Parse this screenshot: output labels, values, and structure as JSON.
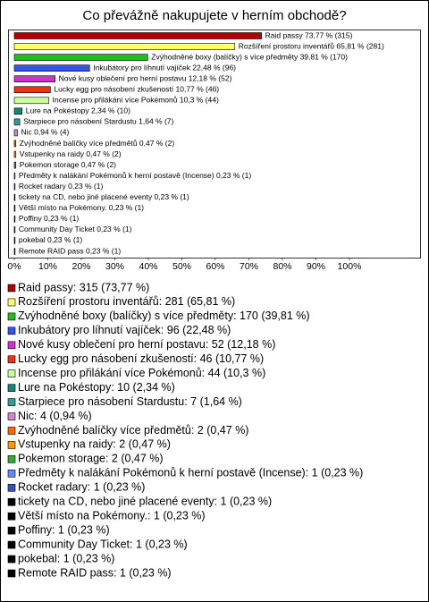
{
  "chart_data": {
    "type": "bar",
    "orientation": "horizontal",
    "title": "Co převážně nakupujete v herním obchodě?",
    "categories": [
      "Raid passy",
      "Rozšíření prostoru inventářů",
      "Zvýhodněné boxy (balíčky) s více předměty",
      "Inkubátory pro líhnutí vajíček",
      "Nové kusy oblečení pro herní postavu",
      "Lucky egg pro násobení zkušeností",
      "Incense pro přilákání více Pokémonů",
      "Lure na Pokéstopy",
      "Starpiece pro násobení Stardustu",
      "Nic",
      "Zvýhodněné balíčky více předmětů",
      "Vstupenky na raidy",
      "Pokemon storage",
      "Předměty k nalákání Pokémonů k herní postavě (Incense)",
      "Rocket radary",
      "tickety na CD, nebo jiné placené eventy",
      "Větší místo na Pokémony.",
      "Poffiny",
      "Community Day Ticket",
      "pokebal",
      "Remote RAID pass"
    ],
    "values": [
      73.77,
      65.81,
      39.81,
      22.48,
      12.18,
      10.77,
      10.3,
      2.34,
      1.64,
      0.94,
      0.47,
      0.47,
      0.47,
      0.23,
      0.23,
      0.23,
      0.23,
      0.23,
      0.23,
      0.23,
      0.23
    ],
    "value_labels": [
      "Raid passy 73,77 % (315)",
      "Rozšíření prostoru inventářů 65,81 % (281)",
      "Zvýhodněné boxy (balíčky) s více předměty 39,81 % (170)",
      "Inkubátory pro líhnutí vajíček 22,48 % (96)",
      "Nové kusy oblečení pro herní postavu 12,18 % (52)",
      "Lucky egg pro násobení zkušeností 10,77 % (46)",
      "Incense pro přilákání více Pokémonů 10,3 % (44)",
      "Lure na Pokéstopy 2,34 % (10)",
      "Starpiece pro násobení Stardustu 1,64 % (7)",
      "Nic 0,94 % (4)",
      "Zvýhodněné balíčky více předmětů 0,47 % (2)",
      "Vstupenky na raidy 0,47 % (2)",
      "Pokemon storage 0,47 % (2)",
      "Předměty k nalákání Pokémonů k herní postavě (Incense) 0,23 % (1)",
      "Rocket radary 0,23 % (1)",
      "tickety na CD, nebo jiné placené eventy 0,23 % (1)",
      "Větší místo na Pokémony. 0,23 % (1)",
      "Poffiny 0,23 % (1)",
      "Community Day Ticket 0,23 % (1)",
      "pokebal 0,23 % (1)",
      "Remote RAID pass 0,23 % (1)"
    ],
    "legend_labels": [
      "Raid passy: 315 (73,77 %)",
      "Rozšíření prostoru inventářů: 281 (65,81 %)",
      "Zvýhodněné boxy (balíčky) s více předměty: 170 (39,81 %)",
      "Inkubátory pro líhnutí vajíček: 96 (22,48 %)",
      "Nové kusy oblečení pro herní postavu: 52 (12,18 %)",
      "Lucky egg pro násobení zkušeností: 46 (10,77 %)",
      "Incense pro přilákání více Pokémonů: 44 (10,3 %)",
      "Lure na Pokéstopy: 10 (2,34 %)",
      "Starpiece pro násobení Stardustu: 7 (1,64 %)",
      "Nic: 4 (0,94 %)",
      "Zvýhodněné balíčky více předmětů: 2 (0,47 %)",
      "Vstupenky na raidy: 2 (0,47 %)",
      "Pokemon storage: 2 (0,47 %)",
      "Předměty k nalákání Pokémonů k herní postavě (Incense): 1 (0,23 %)",
      "Rocket radary: 1 (0,23 %)",
      "tickety na CD, nebo jiné placené eventy: 1 (0,23 %)",
      "Větší místo na Pokémony.: 1 (0,23 %)",
      "Poffiny: 1 (0,23 %)",
      "Community Day Ticket: 1 (0,23 %)",
      "pokebal: 1 (0,23 %)",
      "Remote RAID pass: 1 (0,23 %)"
    ],
    "colors": [
      "#b00000",
      "#ffff66",
      "#22bb22",
      "#3355ee",
      "#cc33cc",
      "#ee3311",
      "#ccff99",
      "#118877",
      "#339999",
      "#cc88cc",
      "#ff6600",
      "#ff9900",
      "#33aa33",
      "#6688ff",
      "#3355bb",
      "#000000",
      "#000000",
      "#000000",
      "#000000",
      "#000000",
      "#000000"
    ],
    "xlim": [
      0,
      100
    ],
    "xticks": [
      {
        "value": 0,
        "label": "0%"
      },
      {
        "value": 10,
        "label": "10%"
      },
      {
        "value": 20,
        "label": "20%"
      },
      {
        "value": 30,
        "label": "30%"
      },
      {
        "value": 40,
        "label": "40%"
      },
      {
        "value": 50,
        "label": "50%"
      },
      {
        "value": 60,
        "label": "60%"
      },
      {
        "value": 70,
        "label": "70%"
      },
      {
        "value": 80,
        "label": "80%"
      },
      {
        "value": 90,
        "label": "90%"
      },
      {
        "value": 100,
        "label": "100%"
      }
    ]
  }
}
